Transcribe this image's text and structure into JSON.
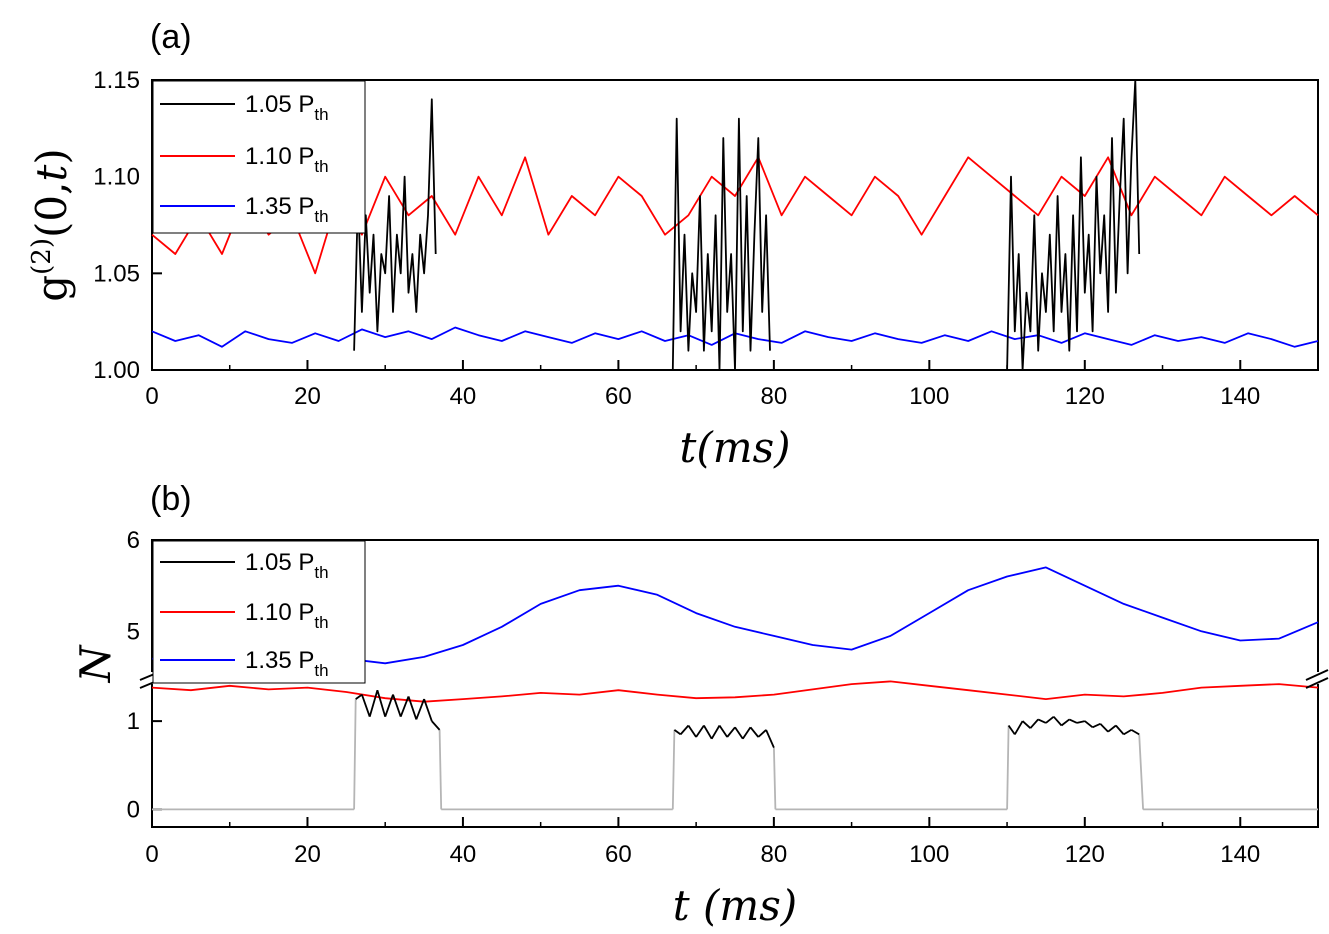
{
  "chart_data": [
    {
      "panel": "(a)",
      "type": "line",
      "xlabel": "t(ms)",
      "ylabel": "g(2)(0,t)",
      "xlim": [
        0,
        150
      ],
      "ylim": [
        1.0,
        1.15
      ],
      "xticks": [
        0,
        20,
        40,
        60,
        80,
        100,
        120,
        140
      ],
      "yticks": [
        1.0,
        1.05,
        1.1,
        1.15
      ],
      "ytick_labels": [
        "1.00",
        "1.05",
        "1.10",
        "1.15"
      ],
      "legend": {
        "position": "top-left",
        "entries": [
          "1.05 Pth",
          "1.10 Pth",
          "1.35 Pth"
        ]
      },
      "series": [
        {
          "name": "1.05 Pth",
          "color": "#000000",
          "x": [
            26.0,
            26.5,
            27.0,
            27.5,
            28.0,
            28.5,
            29.0,
            29.5,
            30.0,
            30.5,
            31.0,
            31.5,
            32.0,
            32.5,
            33.0,
            33.5,
            34.0,
            34.5,
            35.0,
            35.5,
            36.0,
            36.5,
            37.0,
            67.0,
            67.5,
            68.0,
            68.5,
            69.0,
            69.5,
            70.0,
            70.5,
            71.0,
            71.5,
            72.0,
            72.5,
            73.0,
            73.5,
            74.0,
            74.5,
            75.0,
            75.5,
            76.0,
            76.5,
            77.0,
            77.5,
            78.0,
            78.5,
            79.0,
            79.5,
            80.0,
            110.0,
            110.5,
            111.0,
            111.5,
            112.0,
            112.5,
            113.0,
            113.5,
            114.0,
            114.5,
            115.0,
            115.5,
            116.0,
            116.5,
            117.0,
            117.5,
            118.0,
            118.5,
            119.0,
            119.5,
            120.0,
            120.5,
            121.0,
            121.5,
            122.0,
            122.5,
            123.0,
            123.5,
            124.0,
            124.5,
            125.0,
            125.5,
            126.0,
            126.5,
            127.0,
            127.5
          ],
          "y": [
            1.01,
            1.09,
            1.03,
            1.08,
            1.04,
            1.07,
            1.02,
            1.06,
            1.05,
            1.09,
            1.03,
            1.07,
            1.05,
            1.1,
            1.04,
            1.06,
            1.03,
            1.07,
            1.05,
            1.08,
            1.14,
            1.06,
            null,
            1.0,
            1.13,
            1.02,
            1.07,
            1.01,
            1.05,
            1.03,
            1.09,
            1.01,
            1.06,
            1.02,
            1.08,
            1.0,
            1.12,
            1.03,
            1.06,
            1.0,
            1.13,
            1.02,
            1.09,
            1.01,
            1.07,
            1.12,
            1.03,
            1.08,
            1.01,
            null,
            1.0,
            1.1,
            1.02,
            1.06,
            1.0,
            1.04,
            1.02,
            1.08,
            1.01,
            1.05,
            1.03,
            1.07,
            1.02,
            1.09,
            1.03,
            1.06,
            1.01,
            1.08,
            1.02,
            1.11,
            1.04,
            1.07,
            1.02,
            1.1,
            1.05,
            1.08,
            1.03,
            1.12,
            1.04,
            1.09,
            1.13,
            1.05,
            1.11,
            1.15,
            1.06,
            null
          ]
        },
        {
          "name": "1.10 Pth",
          "color": "#ff0000",
          "x": [
            0,
            3,
            6,
            9,
            12,
            15,
            18,
            21,
            24,
            27,
            30,
            33,
            36,
            39,
            42,
            45,
            48,
            51,
            54,
            57,
            60,
            63,
            66,
            69,
            72,
            75,
            78,
            81,
            84,
            87,
            90,
            93,
            96,
            99,
            102,
            105,
            108,
            111,
            114,
            117,
            120,
            123,
            126,
            129,
            132,
            135,
            138,
            141,
            144,
            147,
            150
          ],
          "y": [
            1.07,
            1.06,
            1.08,
            1.06,
            1.09,
            1.07,
            1.08,
            1.05,
            1.09,
            1.07,
            1.1,
            1.08,
            1.09,
            1.07,
            1.1,
            1.08,
            1.11,
            1.07,
            1.09,
            1.08,
            1.1,
            1.09,
            1.07,
            1.08,
            1.1,
            1.09,
            1.11,
            1.08,
            1.1,
            1.09,
            1.08,
            1.1,
            1.09,
            1.07,
            1.09,
            1.11,
            1.1,
            1.09,
            1.08,
            1.1,
            1.09,
            1.11,
            1.08,
            1.1,
            1.09,
            1.08,
            1.1,
            1.09,
            1.08,
            1.09,
            1.08
          ]
        },
        {
          "name": "1.35 Pth",
          "color": "#0000ff",
          "x": [
            0,
            3,
            6,
            9,
            12,
            15,
            18,
            21,
            24,
            27,
            30,
            33,
            36,
            39,
            42,
            45,
            48,
            51,
            54,
            57,
            60,
            63,
            66,
            69,
            72,
            75,
            78,
            81,
            84,
            87,
            90,
            93,
            96,
            99,
            102,
            105,
            108,
            111,
            114,
            117,
            120,
            123,
            126,
            129,
            132,
            135,
            138,
            141,
            144,
            147,
            150
          ],
          "y": [
            1.02,
            1.015,
            1.018,
            1.012,
            1.02,
            1.016,
            1.014,
            1.019,
            1.015,
            1.021,
            1.017,
            1.02,
            1.016,
            1.022,
            1.018,
            1.015,
            1.02,
            1.017,
            1.014,
            1.019,
            1.016,
            1.02,
            1.015,
            1.018,
            1.013,
            1.019,
            1.016,
            1.014,
            1.02,
            1.017,
            1.015,
            1.019,
            1.016,
            1.014,
            1.018,
            1.015,
            1.02,
            1.016,
            1.018,
            1.014,
            1.019,
            1.016,
            1.013,
            1.018,
            1.015,
            1.017,
            1.014,
            1.019,
            1.016,
            1.012,
            1.015
          ]
        }
      ]
    },
    {
      "panel": "(b)",
      "type": "line",
      "xlabel": "t (ms)",
      "ylabel": "N",
      "xlim": [
        0,
        150
      ],
      "axis_break": "between 1.5 and 4.5",
      "ylim_lower": [
        -0.2,
        1.5
      ],
      "ylim_upper": [
        4.5,
        6
      ],
      "xticks": [
        0,
        20,
        40,
        60,
        80,
        100,
        120,
        140
      ],
      "yticks": [
        0,
        1,
        5,
        6
      ],
      "legend": {
        "position": "top-left",
        "entries": [
          "1.05 Pth",
          "1.10 Pth",
          "1.35 Pth"
        ]
      },
      "series": [
        {
          "name": "1.05 Pth",
          "color": "#000000",
          "x": [
            0,
            26,
            26.2,
            27,
            28,
            29,
            30,
            31,
            32,
            33,
            34,
            35,
            36,
            37,
            37.2,
            67,
            67.2,
            68,
            69,
            70,
            71,
            72,
            73,
            74,
            75,
            76,
            77,
            78,
            79,
            80,
            80.2,
            110,
            110.2,
            111,
            112,
            113,
            114,
            115,
            116,
            117,
            118,
            119,
            120,
            121,
            122,
            123,
            124,
            125,
            126,
            127,
            127.5,
            150
          ],
          "y": [
            0,
            0,
            1.25,
            1.3,
            1.05,
            1.35,
            1.05,
            1.3,
            1.05,
            1.28,
            1.02,
            1.25,
            1.0,
            0.9,
            0,
            0,
            0.9,
            0.85,
            0.95,
            0.82,
            0.95,
            0.8,
            0.95,
            0.82,
            0.93,
            0.8,
            0.93,
            0.82,
            0.9,
            0.7,
            0,
            0,
            0.95,
            0.85,
            1.0,
            0.92,
            1.02,
            0.98,
            1.05,
            0.95,
            1.02,
            0.98,
            1.0,
            0.93,
            0.97,
            0.88,
            0.95,
            0.85,
            0.9,
            0.85,
            0,
            0
          ]
        },
        {
          "name": "1.10 Pth",
          "color": "#ff0000",
          "x": [
            0,
            5,
            10,
            15,
            20,
            25,
            30,
            35,
            40,
            45,
            50,
            55,
            60,
            65,
            70,
            75,
            80,
            85,
            90,
            95,
            100,
            105,
            110,
            115,
            120,
            125,
            130,
            135,
            140,
            145,
            150
          ],
          "y": [
            1.38,
            1.35,
            1.4,
            1.36,
            1.38,
            1.33,
            1.26,
            1.22,
            1.25,
            1.28,
            1.32,
            1.3,
            1.35,
            1.3,
            1.26,
            1.27,
            1.3,
            1.36,
            1.42,
            1.45,
            1.4,
            1.35,
            1.3,
            1.25,
            1.3,
            1.28,
            1.32,
            1.38,
            1.4,
            1.42,
            1.38
          ]
        },
        {
          "name": "1.35 Pth",
          "color": "#0000ff",
          "x": [
            0,
            5,
            10,
            15,
            20,
            25,
            30,
            35,
            40,
            45,
            50,
            55,
            60,
            65,
            70,
            75,
            80,
            85,
            90,
            95,
            100,
            105,
            110,
            115,
            120,
            125,
            130,
            135,
            140,
            145,
            150
          ],
          "y": [
            4.7,
            4.68,
            4.72,
            4.7,
            4.68,
            4.7,
            4.65,
            4.72,
            4.85,
            5.05,
            5.3,
            5.45,
            5.5,
            5.4,
            5.2,
            5.05,
            4.95,
            4.85,
            4.8,
            4.95,
            5.2,
            5.45,
            5.6,
            5.7,
            5.5,
            5.3,
            5.15,
            5.0,
            4.9,
            4.92,
            5.1
          ]
        }
      ]
    }
  ],
  "labels": {
    "panel_a": "(a)",
    "panel_b": "(b)",
    "x_axis_a": "t(ms)",
    "x_axis_b": "t (ms)",
    "y_axis_a_base": "g",
    "y_axis_a_sup": "(2)",
    "y_axis_a_args": "(0,",
    "y_axis_a_t": "t",
    "y_axis_a_close": ")",
    "y_axis_b": "N",
    "legend_value_1": "1.05 P",
    "legend_value_2": "1.10 P",
    "legend_value_3": "1.35 P",
    "legend_sub": "th"
  }
}
